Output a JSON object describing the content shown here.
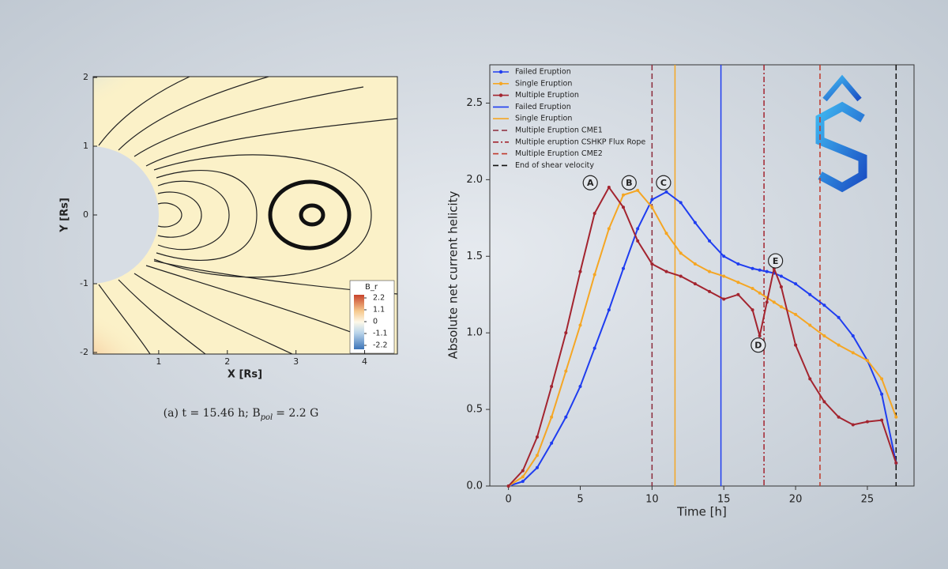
{
  "chart_data": [
    {
      "type": "field",
      "x_label": "X [Rs]",
      "y_label": "Y [Rs]",
      "xlim": [
        0,
        4.5
      ],
      "ylim": [
        -2,
        2
      ],
      "xticks": [
        1,
        2,
        3,
        4
      ],
      "yticks": [
        -2,
        -1,
        0,
        1,
        2
      ],
      "colorbar": {
        "title": "B_r",
        "ticks": [
          2.2,
          1.1,
          0,
          -1.1,
          -2.2
        ]
      },
      "caption": [
        "(a) t = 15.46 h; B",
        "pol",
        "= 2.2 G"
      ]
    },
    {
      "type": "line",
      "x_label": "Time [h]",
      "y_label": "Absolute net current helicity",
      "xlim": [
        -1.3,
        28.25
      ],
      "ylim": [
        0,
        2.75
      ],
      "xticks": [
        0,
        5,
        10,
        15,
        20,
        25
      ],
      "yticks": [
        {
          "value": 0,
          "label": "0.0"
        },
        {
          "value": 0.5,
          "label": "0.5"
        },
        {
          "value": 1,
          "label": "1.0"
        },
        {
          "value": 1.5,
          "label": "1.5"
        },
        {
          "value": 2,
          "label": "2.0"
        },
        {
          "value": 2.5,
          "label": "2.5"
        }
      ],
      "legend": "upper left",
      "x": [
        0,
        1,
        2,
        3,
        4,
        5,
        6,
        7,
        8,
        9,
        10,
        11,
        12,
        13,
        14,
        15,
        16,
        17,
        17.5,
        18,
        18.5,
        19,
        20,
        21,
        22,
        23,
        24,
        25,
        26,
        27
      ],
      "series": [
        {
          "name": "Failed Eruption",
          "color": "#1f3df0",
          "values": [
            0,
            0.03,
            0.12,
            0.28,
            0.45,
            0.65,
            0.9,
            1.15,
            1.42,
            1.68,
            1.87,
            1.92,
            1.85,
            1.72,
            1.6,
            1.5,
            1.45,
            1.42,
            1.41,
            1.4,
            1.39,
            1.37,
            1.32,
            1.25,
            1.18,
            1.1,
            0.98,
            0.82,
            0.6,
            0.15
          ]
        },
        {
          "name": "Single Eruption",
          "color": "#f5a623",
          "values": [
            0,
            0.06,
            0.2,
            0.45,
            0.75,
            1.05,
            1.38,
            1.68,
            1.9,
            1.93,
            1.82,
            1.65,
            1.52,
            1.45,
            1.4,
            1.37,
            1.33,
            1.29,
            1.26,
            1.23,
            1.2,
            1.17,
            1.12,
            1.05,
            0.98,
            0.92,
            0.87,
            0.82,
            0.7,
            0.45
          ]
        },
        {
          "name": "Multiple Eruption",
          "color": "#a3242f",
          "values": [
            0,
            0.1,
            0.32,
            0.65,
            1.0,
            1.4,
            1.78,
            1.95,
            1.82,
            1.6,
            1.45,
            1.4,
            1.37,
            1.32,
            1.27,
            1.22,
            1.25,
            1.15,
            0.98,
            1.2,
            1.42,
            1.3,
            0.92,
            0.7,
            0.55,
            0.45,
            0.4,
            0.42,
            0.43,
            0.15
          ]
        }
      ],
      "vlines": [
        {
          "name": "Failed Eruption",
          "color": "#1f3df0",
          "x": 14.8,
          "dash": "solid"
        },
        {
          "name": "Single Eruption",
          "color": "#f5a623",
          "x": 11.6,
          "dash": "solid"
        },
        {
          "name": "Multiple Eruption CME1",
          "color": "#8b2a3a",
          "x": 10.0,
          "dash": "dashed"
        },
        {
          "name": "Multiple eruption CSHKP Flux Rope",
          "color": "#a3242f",
          "x": 17.8,
          "dash": "dashdot"
        },
        {
          "name": "Multiple Eruption CME2",
          "color": "#c0392b",
          "x": 21.7,
          "dash": "dashed"
        },
        {
          "name": "End of shear velocity",
          "color": "#111111",
          "x": 27,
          "dash": "dashed"
        }
      ],
      "annotations": [
        {
          "text": "A",
          "x": 5.7,
          "y": 1.98
        },
        {
          "text": "B",
          "x": 8.4,
          "y": 1.98
        },
        {
          "text": "C",
          "x": 10.8,
          "y": 1.98
        },
        {
          "text": "D",
          "x": 17.4,
          "y": 0.92
        },
        {
          "text": "E",
          "x": 18.6,
          "y": 1.47
        }
      ]
    }
  ]
}
